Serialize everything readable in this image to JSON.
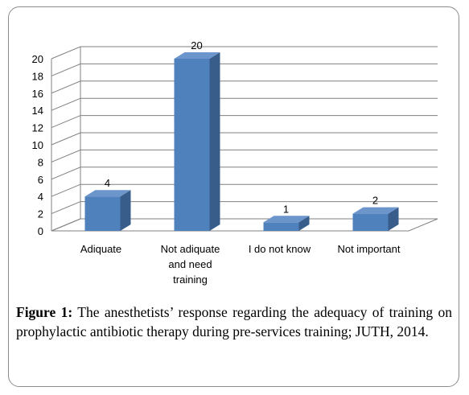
{
  "chart_data": {
    "type": "bar",
    "categories": [
      "Adiquate",
      "Not adiquate and need training",
      "I do not know",
      "Not important"
    ],
    "category_lines": [
      [
        "Adiquate"
      ],
      [
        "Not adiquate",
        "and need",
        "training"
      ],
      [
        "I do not know"
      ],
      [
        "Not important"
      ]
    ],
    "values": [
      4,
      20,
      1,
      2
    ],
    "data_labels": [
      "4",
      "20",
      "1",
      "2"
    ],
    "ylim": [
      0,
      20
    ],
    "yticks": [
      0,
      2,
      4,
      6,
      8,
      10,
      12,
      14,
      16,
      18,
      20
    ],
    "grid": true,
    "style": "3d-column",
    "colors": {
      "bar_front": "#4f81bd",
      "bar_side": "#385d8a",
      "bar_top": "#6c96cb",
      "grid": "#808080"
    }
  },
  "caption": {
    "label": "Figure 1:",
    "text": "The anesthetists’ response regarding the adequacy of training on prophylactic antibiotic therapy during pre-services training; JUTH, 2014."
  }
}
